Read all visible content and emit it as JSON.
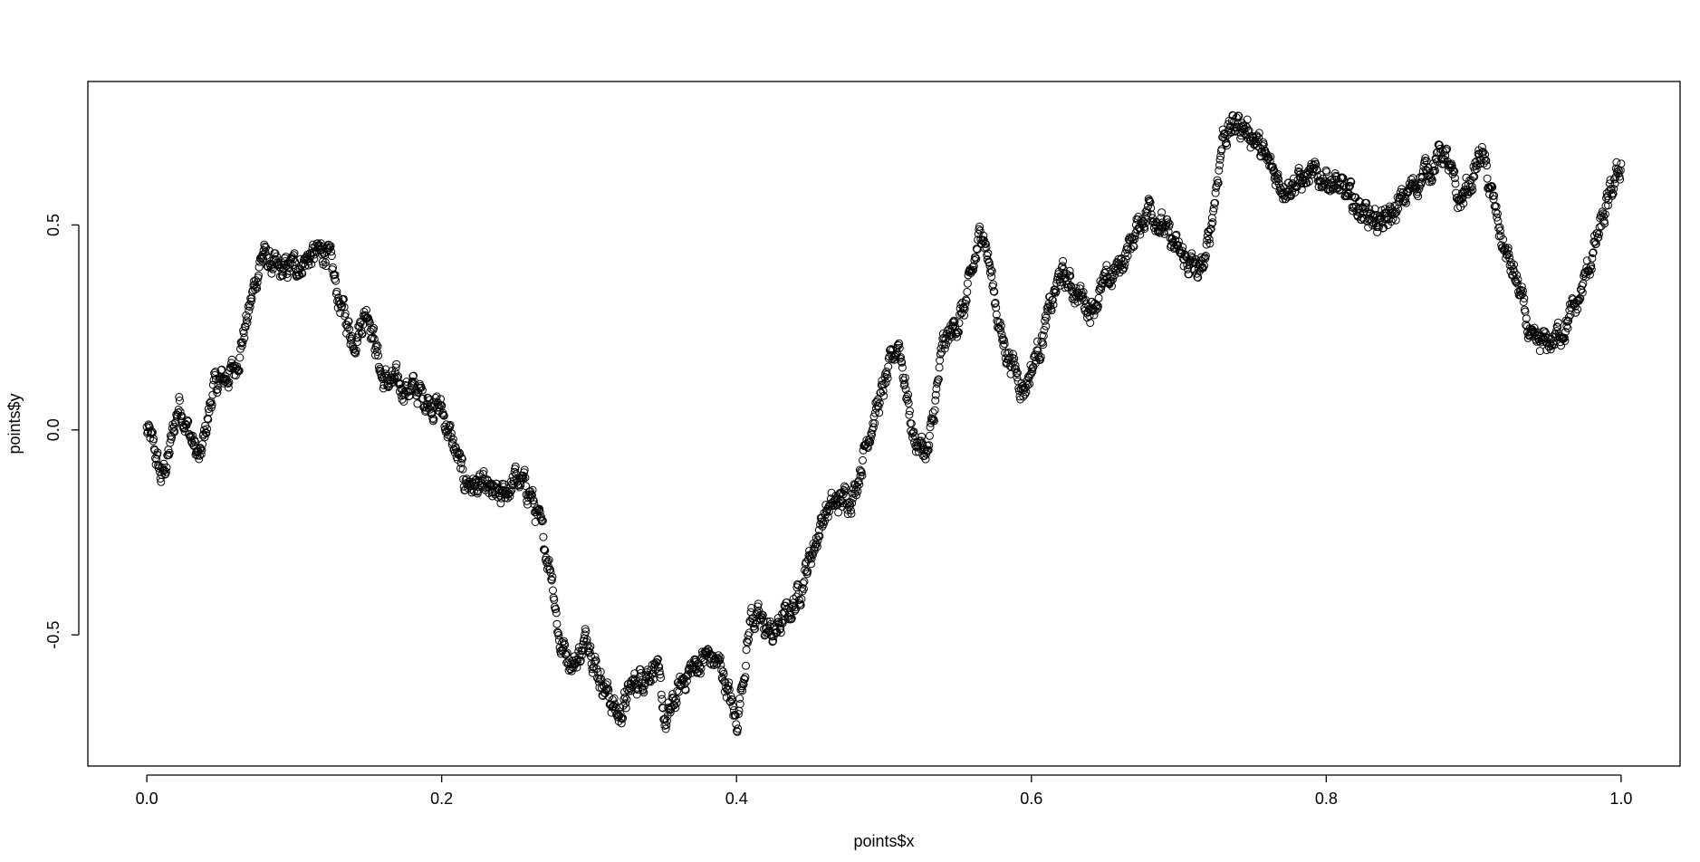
{
  "chart_data": {
    "type": "scatter",
    "title": "",
    "xlabel": "points$x",
    "ylabel": "points$y",
    "xlim": [
      -0.04,
      1.04
    ],
    "ylim": [
      -0.82,
      0.85
    ],
    "xticks": [
      0.0,
      0.2,
      0.4,
      0.6,
      0.8,
      1.0
    ],
    "xtick_labels": [
      "0.0",
      "0.2",
      "0.4",
      "0.6",
      "0.8",
      "1.0"
    ],
    "yticks": [
      -0.5,
      0.0,
      0.5
    ],
    "ytick_labels": [
      "-0.5",
      "0.0",
      "0.5"
    ],
    "grid": false,
    "legend": "none",
    "marker": "open-circle",
    "color": "#000000",
    "path_keypoints": {
      "x": [
        0.0,
        0.005,
        0.01,
        0.015,
        0.022,
        0.03,
        0.036,
        0.045,
        0.06,
        0.07,
        0.078,
        0.09,
        0.1,
        0.11,
        0.122,
        0.13,
        0.14,
        0.15,
        0.16,
        0.18,
        0.2,
        0.215,
        0.24,
        0.25,
        0.26,
        0.275,
        0.28,
        0.29,
        0.3,
        0.305,
        0.32,
        0.33,
        0.345,
        0.352,
        0.365,
        0.38,
        0.39,
        0.4,
        0.41,
        0.425,
        0.44,
        0.46,
        0.48,
        0.49,
        0.5,
        0.51,
        0.52,
        0.53,
        0.54,
        0.555,
        0.567,
        0.58,
        0.595,
        0.605,
        0.62,
        0.64,
        0.66,
        0.68,
        0.7,
        0.715,
        0.72,
        0.73,
        0.74,
        0.75,
        0.76,
        0.77,
        0.8,
        0.82,
        0.84,
        0.85,
        0.86,
        0.88,
        0.89,
        0.9,
        0.905,
        0.92,
        0.93,
        0.94,
        0.955,
        0.97,
        0.98,
        1.0
      ],
      "y": [
        0.0,
        -0.05,
        -0.12,
        -0.06,
        0.07,
        -0.02,
        -0.08,
        0.1,
        0.15,
        0.3,
        0.43,
        0.38,
        0.4,
        0.42,
        0.44,
        0.32,
        0.22,
        0.3,
        0.12,
        0.1,
        0.05,
        -0.12,
        -0.17,
        -0.12,
        -0.15,
        -0.35,
        -0.52,
        -0.57,
        -0.5,
        -0.58,
        -0.7,
        -0.62,
        -0.57,
        -0.72,
        -0.6,
        -0.55,
        -0.58,
        -0.72,
        -0.45,
        -0.5,
        -0.42,
        -0.2,
        -0.15,
        0.0,
        0.1,
        0.22,
        -0.02,
        -0.06,
        0.2,
        0.3,
        0.5,
        0.22,
        0.1,
        0.2,
        0.38,
        0.3,
        0.4,
        0.55,
        0.43,
        0.38,
        0.45,
        0.72,
        0.75,
        0.72,
        0.65,
        0.6,
        0.62,
        0.55,
        0.5,
        0.55,
        0.6,
        0.68,
        0.55,
        0.62,
        0.68,
        0.45,
        0.35,
        0.2,
        0.22,
        0.3,
        0.42,
        0.65
      ]
    }
  }
}
